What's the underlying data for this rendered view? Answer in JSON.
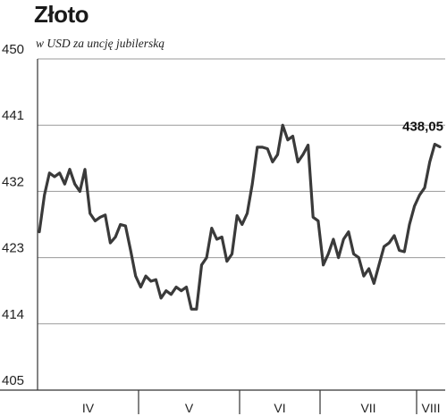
{
  "chart_data": {
    "type": "line",
    "title": "Złoto",
    "subtitle": "w USD za uncję jubilerską",
    "ylim": [
      405,
      450
    ],
    "yticks": [
      450,
      441,
      432,
      423,
      414,
      405
    ],
    "grid": true,
    "months": [
      "IV",
      "V",
      "VI",
      "VII",
      "VIII"
    ],
    "last_value_label": "438,05",
    "line_color": "#3a3a3a",
    "values": [
      426.5,
      431.5,
      434.5,
      434.0,
      434.5,
      433.0,
      435.0,
      433.0,
      432.0,
      435.0,
      429.0,
      428.0,
      428.5,
      428.8,
      425.0,
      425.8,
      427.5,
      427.3,
      424.0,
      420.5,
      419.0,
      420.5,
      419.8,
      420.0,
      417.5,
      418.5,
      418.0,
      419.0,
      418.5,
      419.0,
      416.0,
      416.0,
      422.0,
      423.0,
      427.0,
      425.5,
      425.8,
      422.5,
      423.5,
      428.7,
      427.5,
      429.0,
      433.0,
      438.0,
      438.0,
      437.8,
      436.0,
      437.0,
      441.0,
      439.0,
      439.5,
      436.0,
      437.0,
      438.3,
      428.5,
      428.0,
      422.0,
      423.5,
      425.5,
      423.0,
      425.5,
      426.5,
      423.5,
      423.0,
      420.5,
      421.5,
      419.5,
      422.0,
      424.5,
      425.0,
      426.0,
      424.0,
      423.8,
      427.5,
      430.0,
      431.5,
      432.5,
      436.0,
      438.4,
      438.05
    ]
  }
}
